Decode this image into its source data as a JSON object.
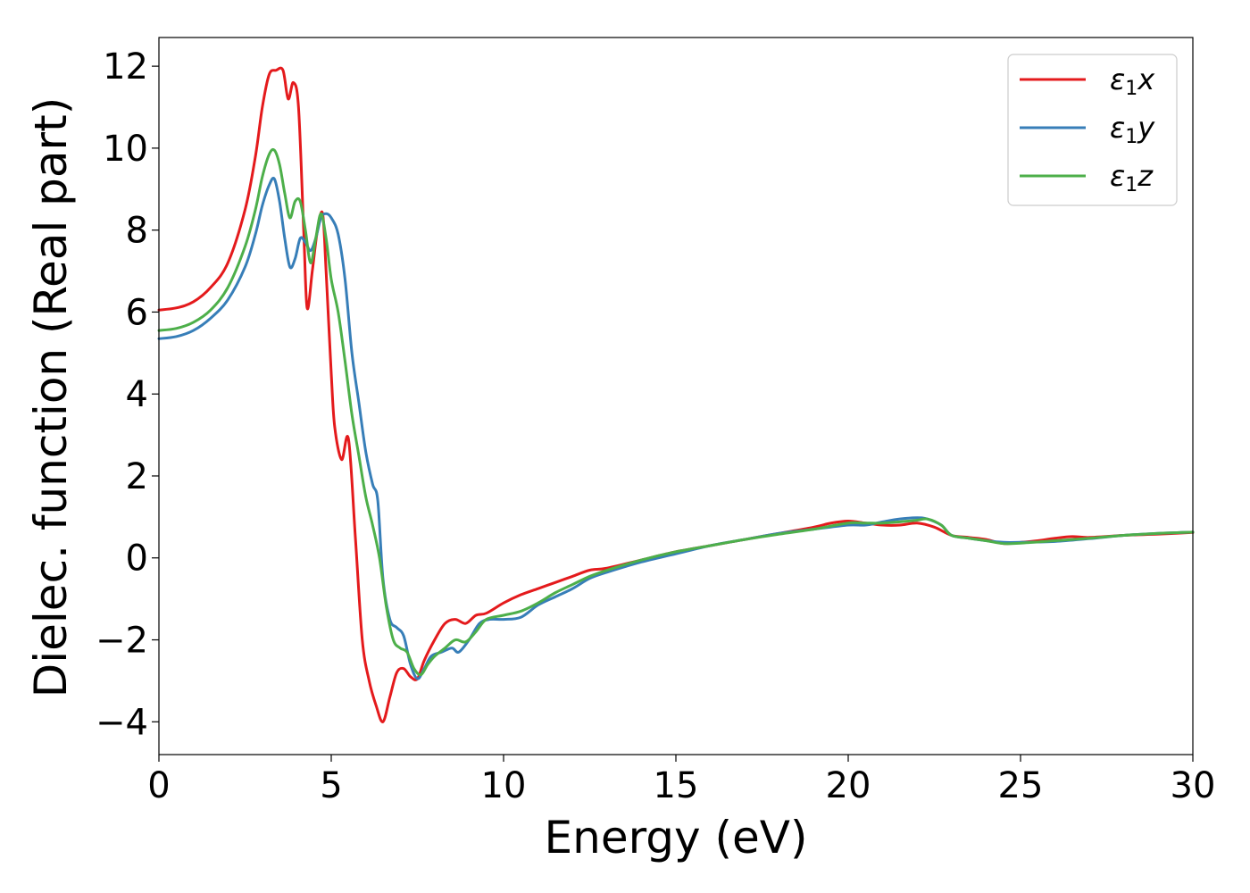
{
  "chart_data": {
    "type": "line",
    "xlabel": "Energy (eV)",
    "ylabel": "Dielec. function (Real part)",
    "xlim": [
      0,
      30
    ],
    "ylim": [
      -4.8,
      12.7
    ],
    "xticks": [
      0,
      5,
      10,
      15,
      20,
      25,
      30
    ],
    "yticks": [
      -4,
      -2,
      0,
      2,
      4,
      6,
      8,
      10,
      12
    ],
    "xtick_labels": [
      "0",
      "5",
      "10",
      "15",
      "20",
      "25",
      "30"
    ],
    "ytick_labels": [
      "−4",
      "−2",
      "0",
      "2",
      "4",
      "6",
      "8",
      "10",
      "12"
    ],
    "grid": false,
    "legend_position": "top-right",
    "series": [
      {
        "name": "ε1x",
        "legend_main": "ε",
        "legend_sub": "1",
        "legend_tail": "x",
        "color": "#e41a1c",
        "x": [
          0,
          0.5,
          1,
          1.5,
          2,
          2.5,
          2.8,
          3,
          3.2,
          3.4,
          3.6,
          3.75,
          3.9,
          4.05,
          4.2,
          4.3,
          4.45,
          4.6,
          4.75,
          4.85,
          5.0,
          5.1,
          5.3,
          5.5,
          5.7,
          5.9,
          6.1,
          6.3,
          6.5,
          6.7,
          6.9,
          7.1,
          7.3,
          7.5,
          7.7,
          8.0,
          8.3,
          8.6,
          8.9,
          9.2,
          9.5,
          10,
          10.5,
          11,
          11.5,
          12,
          12.5,
          13,
          14,
          15,
          16,
          17,
          18,
          19,
          19.5,
          20,
          20.5,
          21,
          21.5,
          22,
          22.5,
          23,
          23.5,
          24,
          24.5,
          25,
          25.5,
          26,
          26.5,
          27,
          28,
          29,
          30
        ],
        "y": [
          6.05,
          6.1,
          6.25,
          6.6,
          7.2,
          8.5,
          9.8,
          11.0,
          11.8,
          11.9,
          11.9,
          11.2,
          11.6,
          11.0,
          8.0,
          6.1,
          7.0,
          8.0,
          8.4,
          7.0,
          4.5,
          3.2,
          2.4,
          2.9,
          0.5,
          -2.0,
          -3.0,
          -3.6,
          -4.0,
          -3.4,
          -2.8,
          -2.7,
          -2.9,
          -2.95,
          -2.5,
          -2.0,
          -1.6,
          -1.5,
          -1.6,
          -1.4,
          -1.35,
          -1.1,
          -0.9,
          -0.75,
          -0.6,
          -0.45,
          -0.3,
          -0.25,
          -0.05,
          0.15,
          0.3,
          0.45,
          0.6,
          0.75,
          0.85,
          0.9,
          0.85,
          0.8,
          0.8,
          0.85,
          0.75,
          0.55,
          0.5,
          0.45,
          0.35,
          0.38,
          0.42,
          0.48,
          0.52,
          0.5,
          0.55,
          0.58,
          0.62
        ]
      },
      {
        "name": "ε1y",
        "legend_main": "ε",
        "legend_sub": "1",
        "legend_tail": "y",
        "color": "#377eb8",
        "x": [
          0,
          0.5,
          1,
          1.5,
          2,
          2.5,
          2.8,
          3,
          3.2,
          3.35,
          3.5,
          3.65,
          3.8,
          3.95,
          4.1,
          4.25,
          4.4,
          4.55,
          4.7,
          4.85,
          5.0,
          5.2,
          5.4,
          5.6,
          5.8,
          6.0,
          6.2,
          6.35,
          6.5,
          6.7,
          6.9,
          7.1,
          7.3,
          7.5,
          7.7,
          7.9,
          8.2,
          8.5,
          8.7,
          9.0,
          9.3,
          9.6,
          10,
          10.5,
          11,
          11.5,
          12,
          12.5,
          13,
          14,
          15,
          16,
          17,
          18,
          19,
          20,
          20.5,
          21,
          21.5,
          22,
          22.3,
          22.7,
          23,
          23.5,
          24,
          24.5,
          25,
          26,
          27,
          28,
          29,
          30
        ],
        "y": [
          5.35,
          5.4,
          5.55,
          5.85,
          6.3,
          7.1,
          7.9,
          8.6,
          9.1,
          9.25,
          8.7,
          7.8,
          7.1,
          7.3,
          7.8,
          7.7,
          7.5,
          7.8,
          8.3,
          8.4,
          8.3,
          7.9,
          6.8,
          5.0,
          3.8,
          2.6,
          1.8,
          1.4,
          -0.5,
          -1.5,
          -1.7,
          -1.9,
          -2.6,
          -2.95,
          -2.7,
          -2.4,
          -2.3,
          -2.2,
          -2.3,
          -2.0,
          -1.6,
          -1.5,
          -1.5,
          -1.45,
          -1.15,
          -0.95,
          -0.75,
          -0.5,
          -0.35,
          -0.1,
          0.1,
          0.3,
          0.45,
          0.6,
          0.7,
          0.8,
          0.8,
          0.88,
          0.95,
          0.98,
          0.95,
          0.8,
          0.55,
          0.48,
          0.42,
          0.38,
          0.38,
          0.4,
          0.47,
          0.55,
          0.6,
          0.63
        ]
      },
      {
        "name": "ε1z",
        "legend_main": "ε",
        "legend_sub": "1",
        "legend_tail": "z",
        "color": "#4daf4a",
        "x": [
          0,
          0.5,
          1,
          1.5,
          2,
          2.5,
          2.8,
          3,
          3.2,
          3.35,
          3.5,
          3.65,
          3.8,
          3.95,
          4.1,
          4.25,
          4.4,
          4.55,
          4.7,
          4.85,
          5.0,
          5.2,
          5.4,
          5.6,
          5.8,
          6.0,
          6.2,
          6.4,
          6.6,
          6.8,
          7.0,
          7.2,
          7.4,
          7.6,
          7.8,
          8.0,
          8.3,
          8.6,
          8.9,
          9.2,
          9.5,
          10,
          10.5,
          11,
          11.5,
          12,
          12.5,
          13,
          14,
          15,
          16,
          17,
          18,
          19,
          20,
          20.5,
          21,
          21.5,
          22,
          22.3,
          22.7,
          23,
          23.5,
          24,
          24.5,
          25,
          26,
          27,
          28,
          29,
          30
        ],
        "y": [
          5.55,
          5.6,
          5.75,
          6.05,
          6.6,
          7.6,
          8.5,
          9.3,
          9.85,
          9.95,
          9.6,
          8.9,
          8.3,
          8.7,
          8.7,
          8.0,
          7.2,
          7.8,
          8.4,
          7.8,
          6.8,
          6.0,
          4.8,
          3.5,
          2.5,
          1.5,
          0.8,
          0.0,
          -1.2,
          -2.0,
          -2.2,
          -2.3,
          -2.7,
          -2.85,
          -2.6,
          -2.4,
          -2.2,
          -2.0,
          -2.05,
          -1.8,
          -1.5,
          -1.4,
          -1.3,
          -1.1,
          -0.85,
          -0.65,
          -0.45,
          -0.3,
          -0.05,
          0.15,
          0.3,
          0.45,
          0.58,
          0.7,
          0.85,
          0.85,
          0.85,
          0.88,
          0.92,
          0.95,
          0.8,
          0.55,
          0.48,
          0.42,
          0.35,
          0.36,
          0.42,
          0.48,
          0.55,
          0.6,
          0.63
        ]
      }
    ]
  }
}
